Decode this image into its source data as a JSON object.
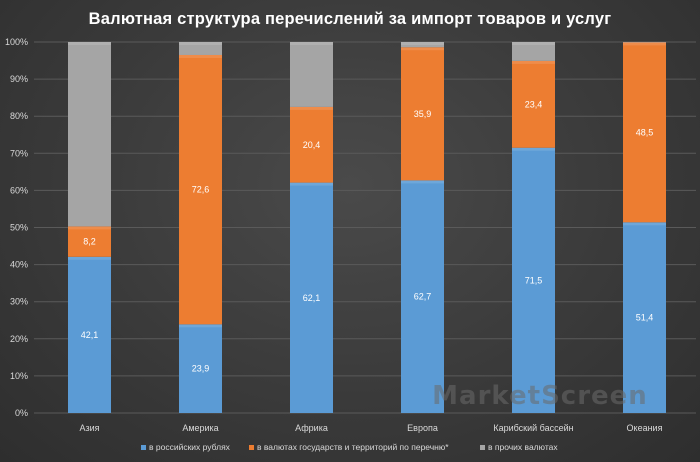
{
  "colors": {
    "series_rub": "#5b9bd5",
    "series_list": "#ed7d31",
    "series_other": "#a5a5a5",
    "grid": "#5a5a5a",
    "axis_text": "#d9d9d9",
    "title": "#ffffff"
  },
  "watermark": "MarketScreen",
  "chart_data": {
    "type": "bar",
    "stacked": true,
    "percent": true,
    "title": "Валютная структура перечислений за импорт товаров и услуг",
    "xlabel": "",
    "ylabel": "",
    "ylim": [
      0,
      100
    ],
    "y_ticks": [
      "0%",
      "10%",
      "20%",
      "30%",
      "40%",
      "50%",
      "60%",
      "70%",
      "80%",
      "90%",
      "100%"
    ],
    "grid": true,
    "legend_position": "bottom",
    "categories": [
      "Азия",
      "Америка",
      "Африка",
      "Европа",
      "Карибский бассейн",
      "Океания"
    ],
    "series": [
      {
        "name": "в российских рублях",
        "color_key": "series_rub",
        "values": [
          42.1,
          23.9,
          62.1,
          62.7,
          71.5,
          51.4
        ],
        "labels": [
          "42,1",
          "23,9",
          "62,1",
          "62,7",
          "71,5",
          "51,4"
        ]
      },
      {
        "name": "в валютах государств и территорий по перечню*",
        "color_key": "series_list",
        "values": [
          8.2,
          72.6,
          20.4,
          35.9,
          23.4,
          48.5
        ],
        "labels": [
          "8,2",
          "72,6",
          "20,4",
          "35,9",
          "23,4",
          "48,5"
        ]
      },
      {
        "name": "в прочих валютах",
        "color_key": "series_other",
        "values": [
          49.7,
          3.5,
          17.5,
          1.4,
          5.1,
          0.1
        ],
        "labels": null
      }
    ]
  }
}
